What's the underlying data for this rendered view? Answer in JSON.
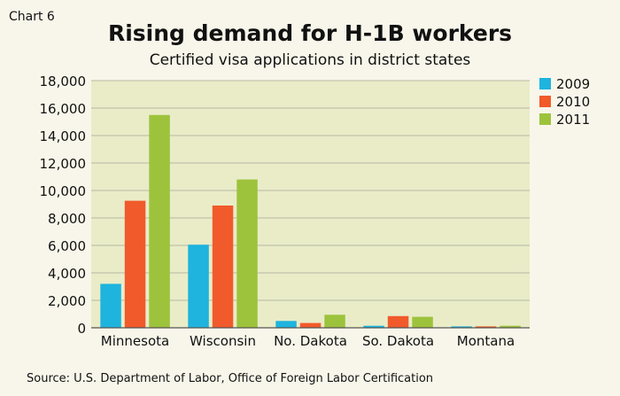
{
  "chart_label": "Chart 6",
  "source": "Source: U.S. Department of Labor, Office of Foreign Labor Certification",
  "colors": {
    "background": "#f8f6ea",
    "plot_area": "#e9ecc7",
    "gridline": "#b8b8a4",
    "text": "#111111"
  },
  "chart_data": {
    "type": "bar",
    "title": "Rising demand for H-1B workers",
    "subtitle": "Certified visa applications in district states",
    "xlabel": "",
    "ylabel": "",
    "categories": [
      "Minnesota",
      "Wisconsin",
      "No. Dakota",
      "So. Dakota",
      "Montana"
    ],
    "series": [
      {
        "name": "2009",
        "color": "#1eb4de",
        "values": [
          3200,
          6050,
          500,
          150,
          100
        ]
      },
      {
        "name": "2010",
        "color": "#f15a2b",
        "values": [
          9250,
          8900,
          350,
          850,
          100
        ]
      },
      {
        "name": "2011",
        "color": "#9dc33c",
        "values": [
          15500,
          10800,
          950,
          800,
          150
        ]
      }
    ],
    "ylim": [
      0,
      18000
    ],
    "yticks": [
      0,
      2000,
      4000,
      6000,
      8000,
      10000,
      12000,
      14000,
      16000,
      18000
    ],
    "ytick_labels": [
      "0",
      "2,000",
      "4,000",
      "6,000",
      "8,000",
      "10,000",
      "12,000",
      "14,000",
      "16,000",
      "18,000"
    ],
    "grid": true,
    "legend_position": "top-right"
  }
}
